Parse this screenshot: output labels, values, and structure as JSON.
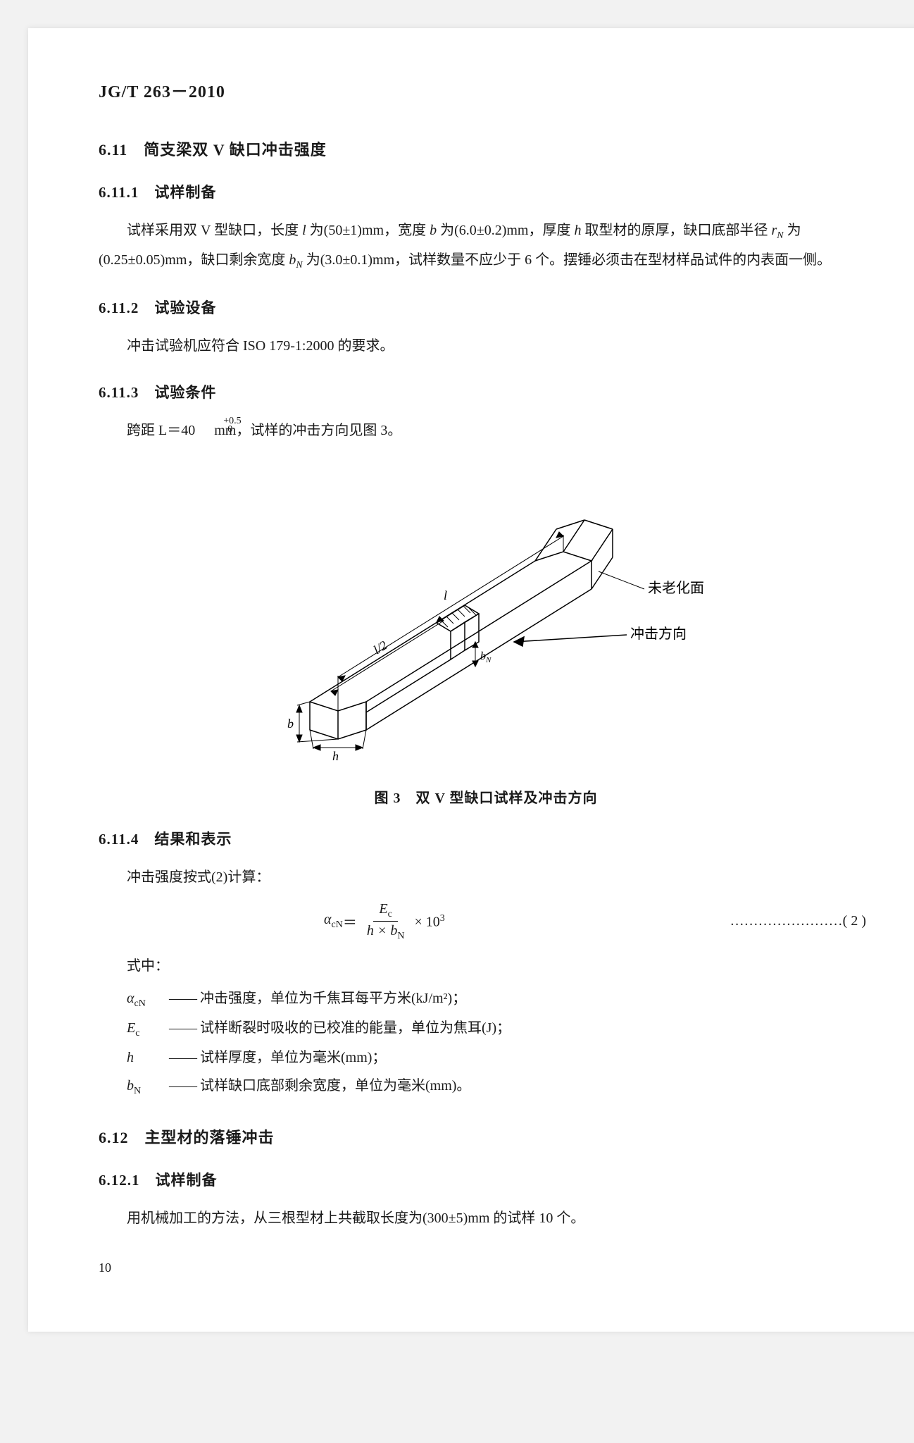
{
  "standard_id": "JG/T 263－2010",
  "sec_6_11_title": "6.11　简支梁双 V 缺口冲击强度",
  "sec_6_11_1_title": "6.11.1　试样制备",
  "sec_6_11_1_p1a": "试样采用双 V 型缺口，长度 ",
  "sec_6_11_1_p1b": " 为(50±1)mm，宽度 ",
  "sec_6_11_1_p1c": " 为(6.0±0.2)mm，厚度 ",
  "sec_6_11_1_p1d": " 取型材的原厚，缺口底部半径 ",
  "sec_6_11_1_p1e": " 为(0.25±0.05)mm，缺口剩余宽度 ",
  "sec_6_11_1_p1f": " 为(3.0±0.1)mm，试样数量不应少于 6 个。摆锤必须击在型材样品试件的内表面一侧。",
  "sym_l": "l",
  "sym_b": "b",
  "sym_h": "h",
  "sym_rN": "r",
  "sym_rN_sub": "N",
  "sym_bN": "b",
  "sym_bN_sub": "N",
  "sec_6_11_2_title": "6.11.2　试验设备",
  "sec_6_11_2_p1": "冲击试验机应符合 ISO 179-1:2000 的要求。",
  "sec_6_11_3_title": "6.11.3　试验条件",
  "sec_6_11_3_p1a": "跨距 L＝40",
  "sec_6_11_3_sup": "+0.5",
  "sec_6_11_3_sub": "0",
  "sec_6_11_3_p1b": " mm，试样的冲击方向见图 3。",
  "figure_caption": "图 3　双 V 型缺口试样及冲击方向",
  "fig_labels": {
    "l": "l",
    "l2": "l/2",
    "b": "b",
    "h": "h",
    "bN": "bN",
    "unaged": "未老化面",
    "impact": "冲击方向"
  },
  "diagram_style": {
    "stroke": "#000000",
    "stroke_width": 1.5,
    "hatch_stroke_width": 1,
    "font_size_dim": 18,
    "font_size_cn": 20
  },
  "sec_6_11_4_title": "6.11.4　结果和表示",
  "sec_6_11_4_p1": "冲击强度按式(2)计算：",
  "formula": {
    "lhs": "α",
    "lhs_sub": "cN",
    "eq": " ＝ ",
    "num": "E",
    "num_sub": "c",
    "den_a": "h × b",
    "den_sub": "N",
    "tail": " × 10",
    "tail_sup": "3",
    "dots": "……………………",
    "num_label": "( 2 )"
  },
  "where_label": "式中：",
  "defs": [
    {
      "sym": "α",
      "sub": "cN",
      "text": "冲击强度，单位为千焦耳每平方米(kJ/m²)；"
    },
    {
      "sym": "E",
      "sub": "c",
      "text": "试样断裂时吸收的已校准的能量，单位为焦耳(J)；"
    },
    {
      "sym": "h",
      "sub": "",
      "text": "试样厚度，单位为毫米(mm)；"
    },
    {
      "sym": "b",
      "sub": "N",
      "text": "试样缺口底部剩余宽度，单位为毫米(mm)。"
    }
  ],
  "def_dash": "——",
  "sec_6_12_title": "6.12　主型材的落锤冲击",
  "sec_6_12_1_title": "6.12.1　试样制备",
  "sec_6_12_1_p1": "用机械加工的方法，从三根型材上共截取长度为(300±5)mm 的试样 10 个。",
  "page_number": "10"
}
